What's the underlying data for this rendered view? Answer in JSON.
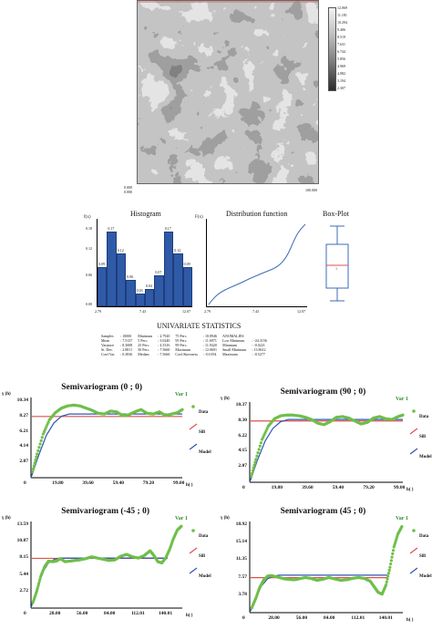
{
  "map": {
    "colorbar_ticks": [
      "12.069",
      "11.181",
      "10.294",
      "9.406",
      "8.519",
      "7.631",
      "6.744",
      "5.856",
      "4.969",
      "4.082",
      "3.194",
      "2.307"
    ],
    "corner_left": "0.000",
    "corner_right": "100.000",
    "corner_bottom_left": "0.000"
  },
  "histogram": {
    "title": "Histogram",
    "y_label": "f(x)",
    "y_ticks": [
      "0.18",
      "0.12",
      "0.06",
      "0.00"
    ],
    "x_ticks": [
      "2.79",
      "7.43",
      "12.07"
    ],
    "bar_values": [
      0.09,
      0.17,
      0.12,
      0.06,
      0.03,
      0.04,
      0.07,
      0.17,
      0.12,
      0.09
    ],
    "bar_labels": [
      "0.09",
      "0.17",
      "0.12",
      "0.06",
      "0.03",
      "0.04",
      "0.07",
      "0.17",
      "0.12",
      "0.09"
    ]
  },
  "distribution": {
    "title": "Distribution function",
    "y_label": "F(x)",
    "x_ticks": [
      "2.79",
      "7.43",
      "12.07"
    ]
  },
  "boxplot": {
    "title": "Box-Plot"
  },
  "stats": {
    "heading": "UNIVARIATE STATISTICS",
    "col1": [
      [
        "Samples",
        ": 10000"
      ],
      [
        "Mean",
        ": 7.5137"
      ],
      [
        "Variance",
        ": 8.3008"
      ],
      [
        "St. Dev.",
        ": 2.8811"
      ],
      [
        "Coef.Var.",
        ": 0.3836"
      ]
    ],
    "col2": [
      [
        "Minimum",
        ": 2.7920"
      ],
      [
        "5 Perc.",
        ": 3.0240"
      ],
      [
        "25 Perc.",
        ": 4.5316"
      ],
      [
        "50 Perc.",
        ": 7.5660"
      ],
      [
        "Median",
        ": 7.5660"
      ]
    ],
    "col3": [
      [
        "75 Perc.",
        ": 10.8946"
      ],
      [
        "95 Perc.",
        ": 11.6971"
      ],
      [
        "99 Perc.",
        ": 11.9420"
      ],
      [
        "Maximum",
        ": 12.0691"
      ],
      [
        "Coef.Skewness",
        ": -0.0194"
      ]
    ],
    "col4": [
      [
        "ANOMALIES",
        ""
      ],
      [
        "Low Minimum",
        ": -24.3156"
      ],
      [
        "Minimum",
        ": -0.0221"
      ],
      [
        "Small Minimum",
        ": 13.8612"
      ],
      [
        "Maximum",
        ": -0.5277"
      ]
    ]
  },
  "variograms": [
    {
      "title": "Semivariogram (0 ; 0)",
      "y_label": "γ (h)",
      "x_label": "h( )",
      "y_ticks": [
        "10.34",
        "8.27",
        "6.21",
        "4.14",
        "2.07"
      ],
      "x_ticks": [
        "19.80",
        "39.60",
        "59.40",
        "79.20",
        "99.00"
      ],
      "var_label": "Var 1",
      "legend": [
        "Data",
        "Sill",
        "Model"
      ],
      "chart_data": {
        "type": "line",
        "series": [
          {
            "name": "Data",
            "x": [
              1,
              4,
              8,
              12,
              16,
              20,
              24,
              28,
              32,
              36,
              40,
              44,
              48,
              52,
              56,
              60,
              64,
              68,
              72,
              76,
              80,
              84,
              88,
              92,
              96,
              99
            ],
            "y": [
              0.8,
              3.2,
              5.9,
              7.8,
              8.8,
              9.4,
              9.7,
              9.8,
              9.7,
              9.4,
              9.1,
              8.7,
              8.6,
              9.0,
              8.9,
              8.4,
              8.5,
              8.9,
              9.2,
              8.7,
              8.6,
              8.9,
              8.4,
              8.6,
              8.8,
              9.2
            ]
          },
          {
            "name": "Sill",
            "x": [
              0,
              99
            ],
            "y": [
              8.27,
              8.27
            ]
          },
          {
            "name": "Model",
            "x": [
              0,
              5,
              10,
              15,
              20,
              25,
              30,
              99
            ],
            "y": [
              0,
              3.0,
              5.7,
              7.4,
              8.3,
              8.6,
              8.6,
              8.6
            ]
          }
        ],
        "xlim": [
          0,
          99
        ],
        "ylim": [
          0,
          10.34
        ]
      }
    },
    {
      "title": "Semivariogram (90 ; 0)",
      "y_label": "γ (h)",
      "x_label": "h( )",
      "y_ticks": [
        "10.37",
        "8.30",
        "6.22",
        "4.15",
        "2.07"
      ],
      "x_ticks": [
        "19.80",
        "39.60",
        "59.40",
        "79.20",
        "99.00"
      ],
      "var_label": "Var 1",
      "legend": [
        "Data",
        "Sill",
        "Model"
      ],
      "chart_data": {
        "type": "line",
        "series": [
          {
            "name": "Data",
            "x": [
              1,
              4,
              8,
              12,
              16,
              20,
              24,
              28,
              32,
              36,
              40,
              44,
              48,
              52,
              56,
              60,
              64,
              68,
              72,
              76,
              80,
              84,
              88,
              92,
              96,
              99
            ],
            "y": [
              0.8,
              3.1,
              5.8,
              7.6,
              8.6,
              9.0,
              9.1,
              9.1,
              9.0,
              8.8,
              8.5,
              8.0,
              7.8,
              8.2,
              8.8,
              8.9,
              8.7,
              8.3,
              7.9,
              8.1,
              8.7,
              8.9,
              8.6,
              8.5,
              8.9,
              9.1
            ]
          },
          {
            "name": "Sill",
            "x": [
              0,
              99
            ],
            "y": [
              8.3,
              8.3
            ]
          },
          {
            "name": "Model",
            "x": [
              0,
              5,
              10,
              15,
              20,
              25,
              30,
              99
            ],
            "y": [
              0,
              3.0,
              5.6,
              7.3,
              8.2,
              8.5,
              8.5,
              8.5
            ]
          }
        ],
        "xlim": [
          0,
          99
        ],
        "ylim": [
          0,
          10.37
        ]
      }
    },
    {
      "title": "Semivariogram (-45 ; 0)",
      "y_label": "γ (h)",
      "x_label": "h( )",
      "y_ticks": [
        "13.59",
        "10.87",
        "8.15",
        "5.44",
        "2.72"
      ],
      "x_ticks": [
        "28.00",
        "56.00",
        "84.00",
        "112.01",
        "140.01"
      ],
      "var_label": "Var 1",
      "legend": [
        "Data",
        "Sill",
        "Model"
      ],
      "chart_data": {
        "type": "line",
        "series": [
          {
            "name": "Data",
            "x": [
              2,
              6,
              10,
              14,
              18,
              22,
              26,
              30,
              35,
              40,
              45,
              50,
              56,
              62,
              68,
              74,
              80,
              86,
              92,
              98,
              104,
              110,
              116,
              122,
              126,
              130,
              134,
              138,
              142,
              146,
              150,
              154
            ],
            "y": [
              0.9,
              2.8,
              5.2,
              6.8,
              7.7,
              7.6,
              7.7,
              8.1,
              7.6,
              7.7,
              7.8,
              7.9,
              8.1,
              8.4,
              8.2,
              8.0,
              7.8,
              7.9,
              8.5,
              8.8,
              8.4,
              8.2,
              8.6,
              9.4,
              8.6,
              7.6,
              7.4,
              8.2,
              9.6,
              11.4,
              12.8,
              13.4
            ]
          },
          {
            "name": "Sill",
            "x": [
              0,
              140
            ],
            "y": [
              8.15,
              8.15
            ]
          },
          {
            "name": "Model",
            "x": [
              0,
              6,
              12,
              18,
              24,
              30,
              140
            ],
            "y": [
              0,
              3.2,
              5.9,
              7.4,
              8.0,
              8.2,
              8.2
            ]
          }
        ],
        "xlim": [
          0,
          155
        ],
        "ylim": [
          0,
          13.59
        ]
      }
    },
    {
      "title": "Semivariogram (45 ; 0)",
      "y_label": "γ (h)",
      "x_label": "h( )",
      "y_ticks": [
        "18.92",
        "15.14",
        "11.35",
        "7.57",
        "3.78"
      ],
      "x_ticks": [
        "28.00",
        "56.00",
        "84.00",
        "112.01",
        "140.01"
      ],
      "var_label": "Var 1",
      "legend": [
        "Data",
        "Sill",
        "Model"
      ],
      "chart_data": {
        "type": "line",
        "series": [
          {
            "name": "Data",
            "x": [
              2,
              6,
              10,
              14,
              18,
              22,
              26,
              30,
              35,
              40,
              45,
              50,
              56,
              62,
              68,
              74,
              80,
              86,
              92,
              98,
              104,
              110,
              116,
              122,
              126,
              130,
              134,
              138,
              142,
              146,
              150,
              154
            ],
            "y": [
              1.0,
              3.0,
              5.4,
              7.0,
              7.9,
              8.0,
              7.8,
              7.6,
              7.3,
              7.2,
              7.1,
              7.3,
              7.6,
              7.4,
              7.0,
              7.2,
              7.6,
              7.3,
              7.0,
              7.1,
              7.4,
              7.6,
              7.4,
              6.8,
              5.6,
              4.4,
              4.0,
              6.0,
              9.8,
              14.2,
              17.0,
              18.6
            ]
          },
          {
            "name": "Sill",
            "x": [
              0,
              140
            ],
            "y": [
              7.57,
              7.57
            ]
          },
          {
            "name": "Model",
            "x": [
              0,
              6,
              12,
              18,
              24,
              30,
              140
            ],
            "y": [
              0,
              3.1,
              5.8,
              7.3,
              7.9,
              8.1,
              8.1
            ]
          }
        ],
        "xlim": [
          0,
          155
        ],
        "ylim": [
          0,
          18.92
        ]
      }
    }
  ],
  "colors": {
    "data": "#6fbf4a",
    "sill": "#d9534f",
    "model": "#2f57b0",
    "hist_bar": "#2f5aa8",
    "cdf": "#3d6bb8"
  }
}
